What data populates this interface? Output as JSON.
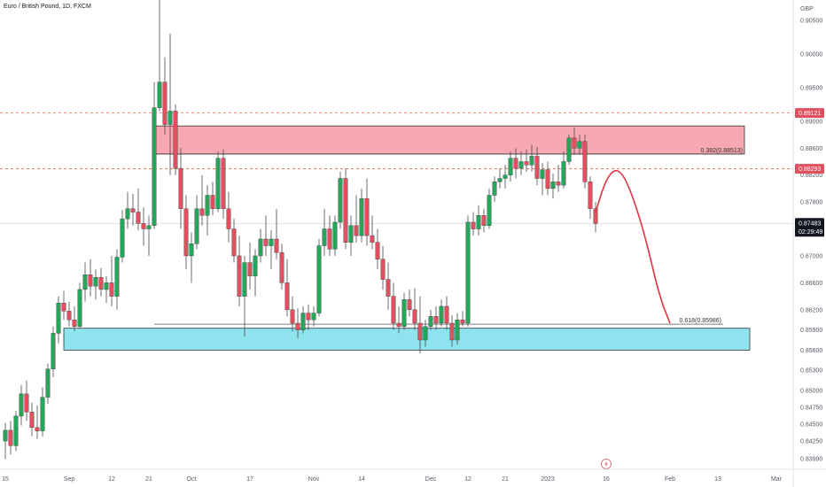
{
  "header": {
    "title": "Euro / British Pound, 1D, FXCM"
  },
  "currency": "GBP",
  "colors": {
    "bull": "#26a65b",
    "bear": "#e0505f",
    "resistance_zone": "#f7a8b0",
    "support_zone": "#8ee3ee",
    "dashed_level": "#e8745f",
    "price_tag": "#e0505f",
    "last_tag": "#131722",
    "projection": "#e03344"
  },
  "chart_data": {
    "type": "candlestick",
    "title": "Euro / British Pound, 1D, FXCM",
    "ylabel": "GBP",
    "ylim": [
      0.8383,
      0.908
    ],
    "y_ticks": [
      "0.90500",
      "0.90000",
      "0.89500",
      "0.89000",
      "0.88600",
      "0.88200",
      "0.87800",
      "0.87400",
      "0.87000",
      "0.86600",
      "0.86200",
      "0.85900",
      "0.85600",
      "0.85300",
      "0.85000",
      "0.84750",
      "0.84500",
      "0.84250",
      "0.83990"
    ],
    "x_ticks": [
      {
        "label": "15",
        "t": 0
      },
      {
        "label": "Sep",
        "t": 12
      },
      {
        "label": "12",
        "t": 20
      },
      {
        "label": "21",
        "t": 27
      },
      {
        "label": "Oct",
        "t": 35
      },
      {
        "label": "17",
        "t": 46
      },
      {
        "label": "Nov",
        "t": 58
      },
      {
        "label": "14",
        "t": 67
      },
      {
        "label": "Dec",
        "t": 80
      },
      {
        "label": "12",
        "t": 87
      },
      {
        "label": "21",
        "t": 94
      },
      {
        "label": "2023",
        "t": 102
      },
      {
        "label": "16",
        "t": 113
      },
      {
        "label": "Feb",
        "t": 125
      },
      {
        "label": "13",
        "t": 134
      },
      {
        "label": "Mar",
        "t": 145
      }
    ],
    "candles": [
      {
        "t": 0,
        "o": 0.8425,
        "h": 0.8452,
        "l": 0.8398,
        "c": 0.8441
      },
      {
        "t": 1,
        "o": 0.8441,
        "h": 0.8455,
        "l": 0.8405,
        "c": 0.8418
      },
      {
        "t": 2,
        "o": 0.8418,
        "h": 0.847,
        "l": 0.841,
        "c": 0.8462
      },
      {
        "t": 3,
        "o": 0.8462,
        "h": 0.8508,
        "l": 0.8448,
        "c": 0.8495
      },
      {
        "t": 4,
        "o": 0.8495,
        "h": 0.8515,
        "l": 0.8455,
        "c": 0.8468
      },
      {
        "t": 5,
        "o": 0.8468,
        "h": 0.8482,
        "l": 0.8432,
        "c": 0.8445
      },
      {
        "t": 6,
        "o": 0.8445,
        "h": 0.8478,
        "l": 0.8428,
        "c": 0.844
      },
      {
        "t": 7,
        "o": 0.844,
        "h": 0.8505,
        "l": 0.8432,
        "c": 0.849
      },
      {
        "t": 8,
        "o": 0.849,
        "h": 0.854,
        "l": 0.848,
        "c": 0.8532
      },
      {
        "t": 9,
        "o": 0.8532,
        "h": 0.8595,
        "l": 0.852,
        "c": 0.8585
      },
      {
        "t": 10,
        "o": 0.8585,
        "h": 0.864,
        "l": 0.857,
        "c": 0.863
      },
      {
        "t": 11,
        "o": 0.863,
        "h": 0.8648,
        "l": 0.8605,
        "c": 0.8618
      },
      {
        "t": 12,
        "o": 0.8618,
        "h": 0.8632,
        "l": 0.8595,
        "c": 0.8605
      },
      {
        "t": 13,
        "o": 0.8605,
        "h": 0.8625,
        "l": 0.8588,
        "c": 0.8595
      },
      {
        "t": 14,
        "o": 0.8595,
        "h": 0.866,
        "l": 0.8592,
        "c": 0.865
      },
      {
        "t": 15,
        "o": 0.865,
        "h": 0.869,
        "l": 0.8632,
        "c": 0.8672
      },
      {
        "t": 16,
        "o": 0.8672,
        "h": 0.8695,
        "l": 0.864,
        "c": 0.8655
      },
      {
        "t": 17,
        "o": 0.8655,
        "h": 0.868,
        "l": 0.8635,
        "c": 0.8668
      },
      {
        "t": 18,
        "o": 0.8668,
        "h": 0.8682,
        "l": 0.864,
        "c": 0.865
      },
      {
        "t": 19,
        "o": 0.865,
        "h": 0.867,
        "l": 0.863,
        "c": 0.866
      },
      {
        "t": 20,
        "o": 0.866,
        "h": 0.87,
        "l": 0.8625,
        "c": 0.864
      },
      {
        "t": 21,
        "o": 0.864,
        "h": 0.871,
        "l": 0.862,
        "c": 0.8698
      },
      {
        "t": 22,
        "o": 0.8698,
        "h": 0.8768,
        "l": 0.869,
        "c": 0.8755
      },
      {
        "t": 23,
        "o": 0.8755,
        "h": 0.8795,
        "l": 0.874,
        "c": 0.877
      },
      {
        "t": 24,
        "o": 0.877,
        "h": 0.8792,
        "l": 0.8745,
        "c": 0.8765
      },
      {
        "t": 25,
        "o": 0.8765,
        "h": 0.88,
        "l": 0.8738,
        "c": 0.8748
      },
      {
        "t": 26,
        "o": 0.8748,
        "h": 0.8772,
        "l": 0.8715,
        "c": 0.874
      },
      {
        "t": 27,
        "o": 0.874,
        "h": 0.876,
        "l": 0.87,
        "c": 0.8745
      },
      {
        "t": 28,
        "o": 0.8745,
        "h": 0.8958,
        "l": 0.874,
        "c": 0.892
      },
      {
        "t": 29,
        "o": 0.892,
        "h": 0.908,
        "l": 0.8915,
        "c": 0.8958
      },
      {
        "t": 30,
        "o": 0.8958,
        "h": 0.8995,
        "l": 0.888,
        "c": 0.8895
      },
      {
        "t": 31,
        "o": 0.8895,
        "h": 0.903,
        "l": 0.882,
        "c": 0.8915
      },
      {
        "t": 32,
        "o": 0.8915,
        "h": 0.8925,
        "l": 0.882,
        "c": 0.883
      },
      {
        "t": 33,
        "o": 0.883,
        "h": 0.886,
        "l": 0.874,
        "c": 0.877
      },
      {
        "t": 34,
        "o": 0.877,
        "h": 0.879,
        "l": 0.868,
        "c": 0.87
      },
      {
        "t": 35,
        "o": 0.87,
        "h": 0.8735,
        "l": 0.866,
        "c": 0.8718
      },
      {
        "t": 36,
        "o": 0.8718,
        "h": 0.879,
        "l": 0.871,
        "c": 0.877
      },
      {
        "t": 37,
        "o": 0.877,
        "h": 0.882,
        "l": 0.8745,
        "c": 0.876
      },
      {
        "t": 38,
        "o": 0.876,
        "h": 0.8805,
        "l": 0.873,
        "c": 0.879
      },
      {
        "t": 39,
        "o": 0.879,
        "h": 0.881,
        "l": 0.876,
        "c": 0.877
      },
      {
        "t": 40,
        "o": 0.877,
        "h": 0.8855,
        "l": 0.8765,
        "c": 0.8845
      },
      {
        "t": 41,
        "o": 0.8845,
        "h": 0.8858,
        "l": 0.8755,
        "c": 0.877
      },
      {
        "t": 42,
        "o": 0.877,
        "h": 0.8795,
        "l": 0.872,
        "c": 0.874
      },
      {
        "t": 43,
        "o": 0.874,
        "h": 0.8755,
        "l": 0.869,
        "c": 0.87
      },
      {
        "t": 44,
        "o": 0.87,
        "h": 0.873,
        "l": 0.8625,
        "c": 0.864
      },
      {
        "t": 45,
        "o": 0.864,
        "h": 0.87,
        "l": 0.858,
        "c": 0.869
      },
      {
        "t": 46,
        "o": 0.869,
        "h": 0.872,
        "l": 0.865,
        "c": 0.867
      },
      {
        "t": 47,
        "o": 0.867,
        "h": 0.871,
        "l": 0.864,
        "c": 0.87
      },
      {
        "t": 48,
        "o": 0.87,
        "h": 0.874,
        "l": 0.869,
        "c": 0.8725
      },
      {
        "t": 49,
        "o": 0.8725,
        "h": 0.876,
        "l": 0.87,
        "c": 0.8715
      },
      {
        "t": 50,
        "o": 0.8715,
        "h": 0.8738,
        "l": 0.868,
        "c": 0.8725
      },
      {
        "t": 51,
        "o": 0.8725,
        "h": 0.877,
        "l": 0.8695,
        "c": 0.8705
      },
      {
        "t": 52,
        "o": 0.8705,
        "h": 0.8718,
        "l": 0.865,
        "c": 0.866
      },
      {
        "t": 53,
        "o": 0.866,
        "h": 0.8695,
        "l": 0.861,
        "c": 0.862
      },
      {
        "t": 54,
        "o": 0.862,
        "h": 0.864,
        "l": 0.8588,
        "c": 0.86
      },
      {
        "t": 55,
        "o": 0.86,
        "h": 0.8622,
        "l": 0.8578,
        "c": 0.859
      },
      {
        "t": 56,
        "o": 0.859,
        "h": 0.8625,
        "l": 0.8585,
        "c": 0.8615
      },
      {
        "t": 57,
        "o": 0.8615,
        "h": 0.8628,
        "l": 0.859,
        "c": 0.8605
      },
      {
        "t": 58,
        "o": 0.8605,
        "h": 0.8625,
        "l": 0.8595,
        "c": 0.8615
      },
      {
        "t": 59,
        "o": 0.8615,
        "h": 0.8725,
        "l": 0.861,
        "c": 0.8715
      },
      {
        "t": 60,
        "o": 0.8715,
        "h": 0.877,
        "l": 0.87,
        "c": 0.874
      },
      {
        "t": 61,
        "o": 0.874,
        "h": 0.876,
        "l": 0.87,
        "c": 0.871
      },
      {
        "t": 62,
        "o": 0.871,
        "h": 0.876,
        "l": 0.87,
        "c": 0.875
      },
      {
        "t": 63,
        "o": 0.875,
        "h": 0.8825,
        "l": 0.874,
        "c": 0.8815
      },
      {
        "t": 64,
        "o": 0.8815,
        "h": 0.883,
        "l": 0.871,
        "c": 0.872
      },
      {
        "t": 65,
        "o": 0.872,
        "h": 0.876,
        "l": 0.87,
        "c": 0.8745
      },
      {
        "t": 66,
        "o": 0.8745,
        "h": 0.879,
        "l": 0.872,
        "c": 0.873
      },
      {
        "t": 67,
        "o": 0.873,
        "h": 0.88,
        "l": 0.872,
        "c": 0.8785
      },
      {
        "t": 68,
        "o": 0.8785,
        "h": 0.8815,
        "l": 0.8715,
        "c": 0.873
      },
      {
        "t": 69,
        "o": 0.873,
        "h": 0.876,
        "l": 0.871,
        "c": 0.872
      },
      {
        "t": 70,
        "o": 0.872,
        "h": 0.874,
        "l": 0.868,
        "c": 0.8695
      },
      {
        "t": 71,
        "o": 0.8695,
        "h": 0.8715,
        "l": 0.865,
        "c": 0.8665
      },
      {
        "t": 72,
        "o": 0.8665,
        "h": 0.869,
        "l": 0.862,
        "c": 0.864
      },
      {
        "t": 73,
        "o": 0.864,
        "h": 0.866,
        "l": 0.859,
        "c": 0.86
      },
      {
        "t": 74,
        "o": 0.86,
        "h": 0.8625,
        "l": 0.8585,
        "c": 0.8595
      },
      {
        "t": 75,
        "o": 0.8595,
        "h": 0.8645,
        "l": 0.859,
        "c": 0.8635
      },
      {
        "t": 76,
        "o": 0.8635,
        "h": 0.865,
        "l": 0.861,
        "c": 0.862
      },
      {
        "t": 77,
        "o": 0.862,
        "h": 0.8652,
        "l": 0.859,
        "c": 0.86
      },
      {
        "t": 78,
        "o": 0.86,
        "h": 0.864,
        "l": 0.8555,
        "c": 0.8575
      },
      {
        "t": 79,
        "o": 0.8575,
        "h": 0.8605,
        "l": 0.8565,
        "c": 0.8595
      },
      {
        "t": 80,
        "o": 0.8595,
        "h": 0.862,
        "l": 0.859,
        "c": 0.861
      },
      {
        "t": 81,
        "o": 0.861,
        "h": 0.8625,
        "l": 0.859,
        "c": 0.86
      },
      {
        "t": 82,
        "o": 0.86,
        "h": 0.8635,
        "l": 0.8595,
        "c": 0.8625
      },
      {
        "t": 83,
        "o": 0.8625,
        "h": 0.864,
        "l": 0.859,
        "c": 0.86
      },
      {
        "t": 84,
        "o": 0.86,
        "h": 0.8612,
        "l": 0.8565,
        "c": 0.8575
      },
      {
        "t": 85,
        "o": 0.8575,
        "h": 0.8615,
        "l": 0.8568,
        "c": 0.8605
      },
      {
        "t": 86,
        "o": 0.8605,
        "h": 0.8618,
        "l": 0.8595,
        "c": 0.86
      },
      {
        "t": 87,
        "o": 0.86,
        "h": 0.876,
        "l": 0.8595,
        "c": 0.875
      },
      {
        "t": 88,
        "o": 0.875,
        "h": 0.8765,
        "l": 0.873,
        "c": 0.874
      },
      {
        "t": 89,
        "o": 0.874,
        "h": 0.8775,
        "l": 0.873,
        "c": 0.876
      },
      {
        "t": 90,
        "o": 0.876,
        "h": 0.877,
        "l": 0.8735,
        "c": 0.8745
      },
      {
        "t": 91,
        "o": 0.8745,
        "h": 0.88,
        "l": 0.874,
        "c": 0.879
      },
      {
        "t": 92,
        "o": 0.879,
        "h": 0.8818,
        "l": 0.878,
        "c": 0.881
      },
      {
        "t": 93,
        "o": 0.881,
        "h": 0.883,
        "l": 0.88,
        "c": 0.8815
      },
      {
        "t": 94,
        "o": 0.8815,
        "h": 0.8835,
        "l": 0.88,
        "c": 0.882
      },
      {
        "t": 95,
        "o": 0.882,
        "h": 0.8855,
        "l": 0.881,
        "c": 0.8845
      },
      {
        "t": 96,
        "o": 0.8845,
        "h": 0.886,
        "l": 0.8815,
        "c": 0.883
      },
      {
        "t": 97,
        "o": 0.883,
        "h": 0.8855,
        "l": 0.882,
        "c": 0.884
      },
      {
        "t": 98,
        "o": 0.884,
        "h": 0.8858,
        "l": 0.8825,
        "c": 0.8835
      },
      {
        "t": 99,
        "o": 0.8835,
        "h": 0.8865,
        "l": 0.8825,
        "c": 0.8848
      },
      {
        "t": 100,
        "o": 0.8848,
        "h": 0.8862,
        "l": 0.8805,
        "c": 0.8815
      },
      {
        "t": 101,
        "o": 0.8815,
        "h": 0.8838,
        "l": 0.879,
        "c": 0.8828
      },
      {
        "t": 102,
        "o": 0.8828,
        "h": 0.884,
        "l": 0.879,
        "c": 0.88
      },
      {
        "t": 103,
        "o": 0.88,
        "h": 0.8822,
        "l": 0.8785,
        "c": 0.881
      },
      {
        "t": 104,
        "o": 0.881,
        "h": 0.8835,
        "l": 0.8795,
        "c": 0.8805
      },
      {
        "t": 105,
        "o": 0.8805,
        "h": 0.8855,
        "l": 0.88,
        "c": 0.884
      },
      {
        "t": 106,
        "o": 0.884,
        "h": 0.888,
        "l": 0.8835,
        "c": 0.8875
      },
      {
        "t": 107,
        "o": 0.8875,
        "h": 0.889,
        "l": 0.885,
        "c": 0.886
      },
      {
        "t": 108,
        "o": 0.886,
        "h": 0.888,
        "l": 0.885,
        "c": 0.887
      },
      {
        "t": 109,
        "o": 0.887,
        "h": 0.888,
        "l": 0.88,
        "c": 0.881
      },
      {
        "t": 110,
        "o": 0.881,
        "h": 0.8818,
        "l": 0.8755,
        "c": 0.877
      },
      {
        "t": 111,
        "o": 0.877,
        "h": 0.878,
        "l": 0.8735,
        "c": 0.8748
      }
    ],
    "zones": [
      {
        "name": "resistance",
        "from_t": 28,
        "to_t": 139,
        "low": 0.88513,
        "high": 0.8893
      },
      {
        "name": "support",
        "from_t": 11,
        "to_t": 140,
        "low": 0.856,
        "high": 0.85925
      }
    ],
    "fib_levels": [
      {
        "label": "0.382(0.88513)",
        "value": 0.88513,
        "from_t": 28,
        "to_t": 139
      },
      {
        "label": "0.618(0.85986)",
        "value": 0.85986,
        "from_t": 28,
        "to_t": 135
      }
    ],
    "dashed_levels": [
      {
        "value": 0.89121,
        "label": "0.89121"
      },
      {
        "value": 0.88293,
        "label": "0.88293"
      }
    ],
    "last_price": {
      "value": 0.87483,
      "label": "0.87483",
      "countdown": "02:29:49"
    },
    "projection": [
      {
        "t": 111,
        "v": 0.8765
      },
      {
        "t": 113,
        "v": 0.8815
      },
      {
        "t": 115,
        "v": 0.8831
      },
      {
        "t": 117,
        "v": 0.881
      },
      {
        "t": 120,
        "v": 0.874
      },
      {
        "t": 123,
        "v": 0.864
      },
      {
        "t": 125,
        "v": 0.86
      }
    ]
  }
}
